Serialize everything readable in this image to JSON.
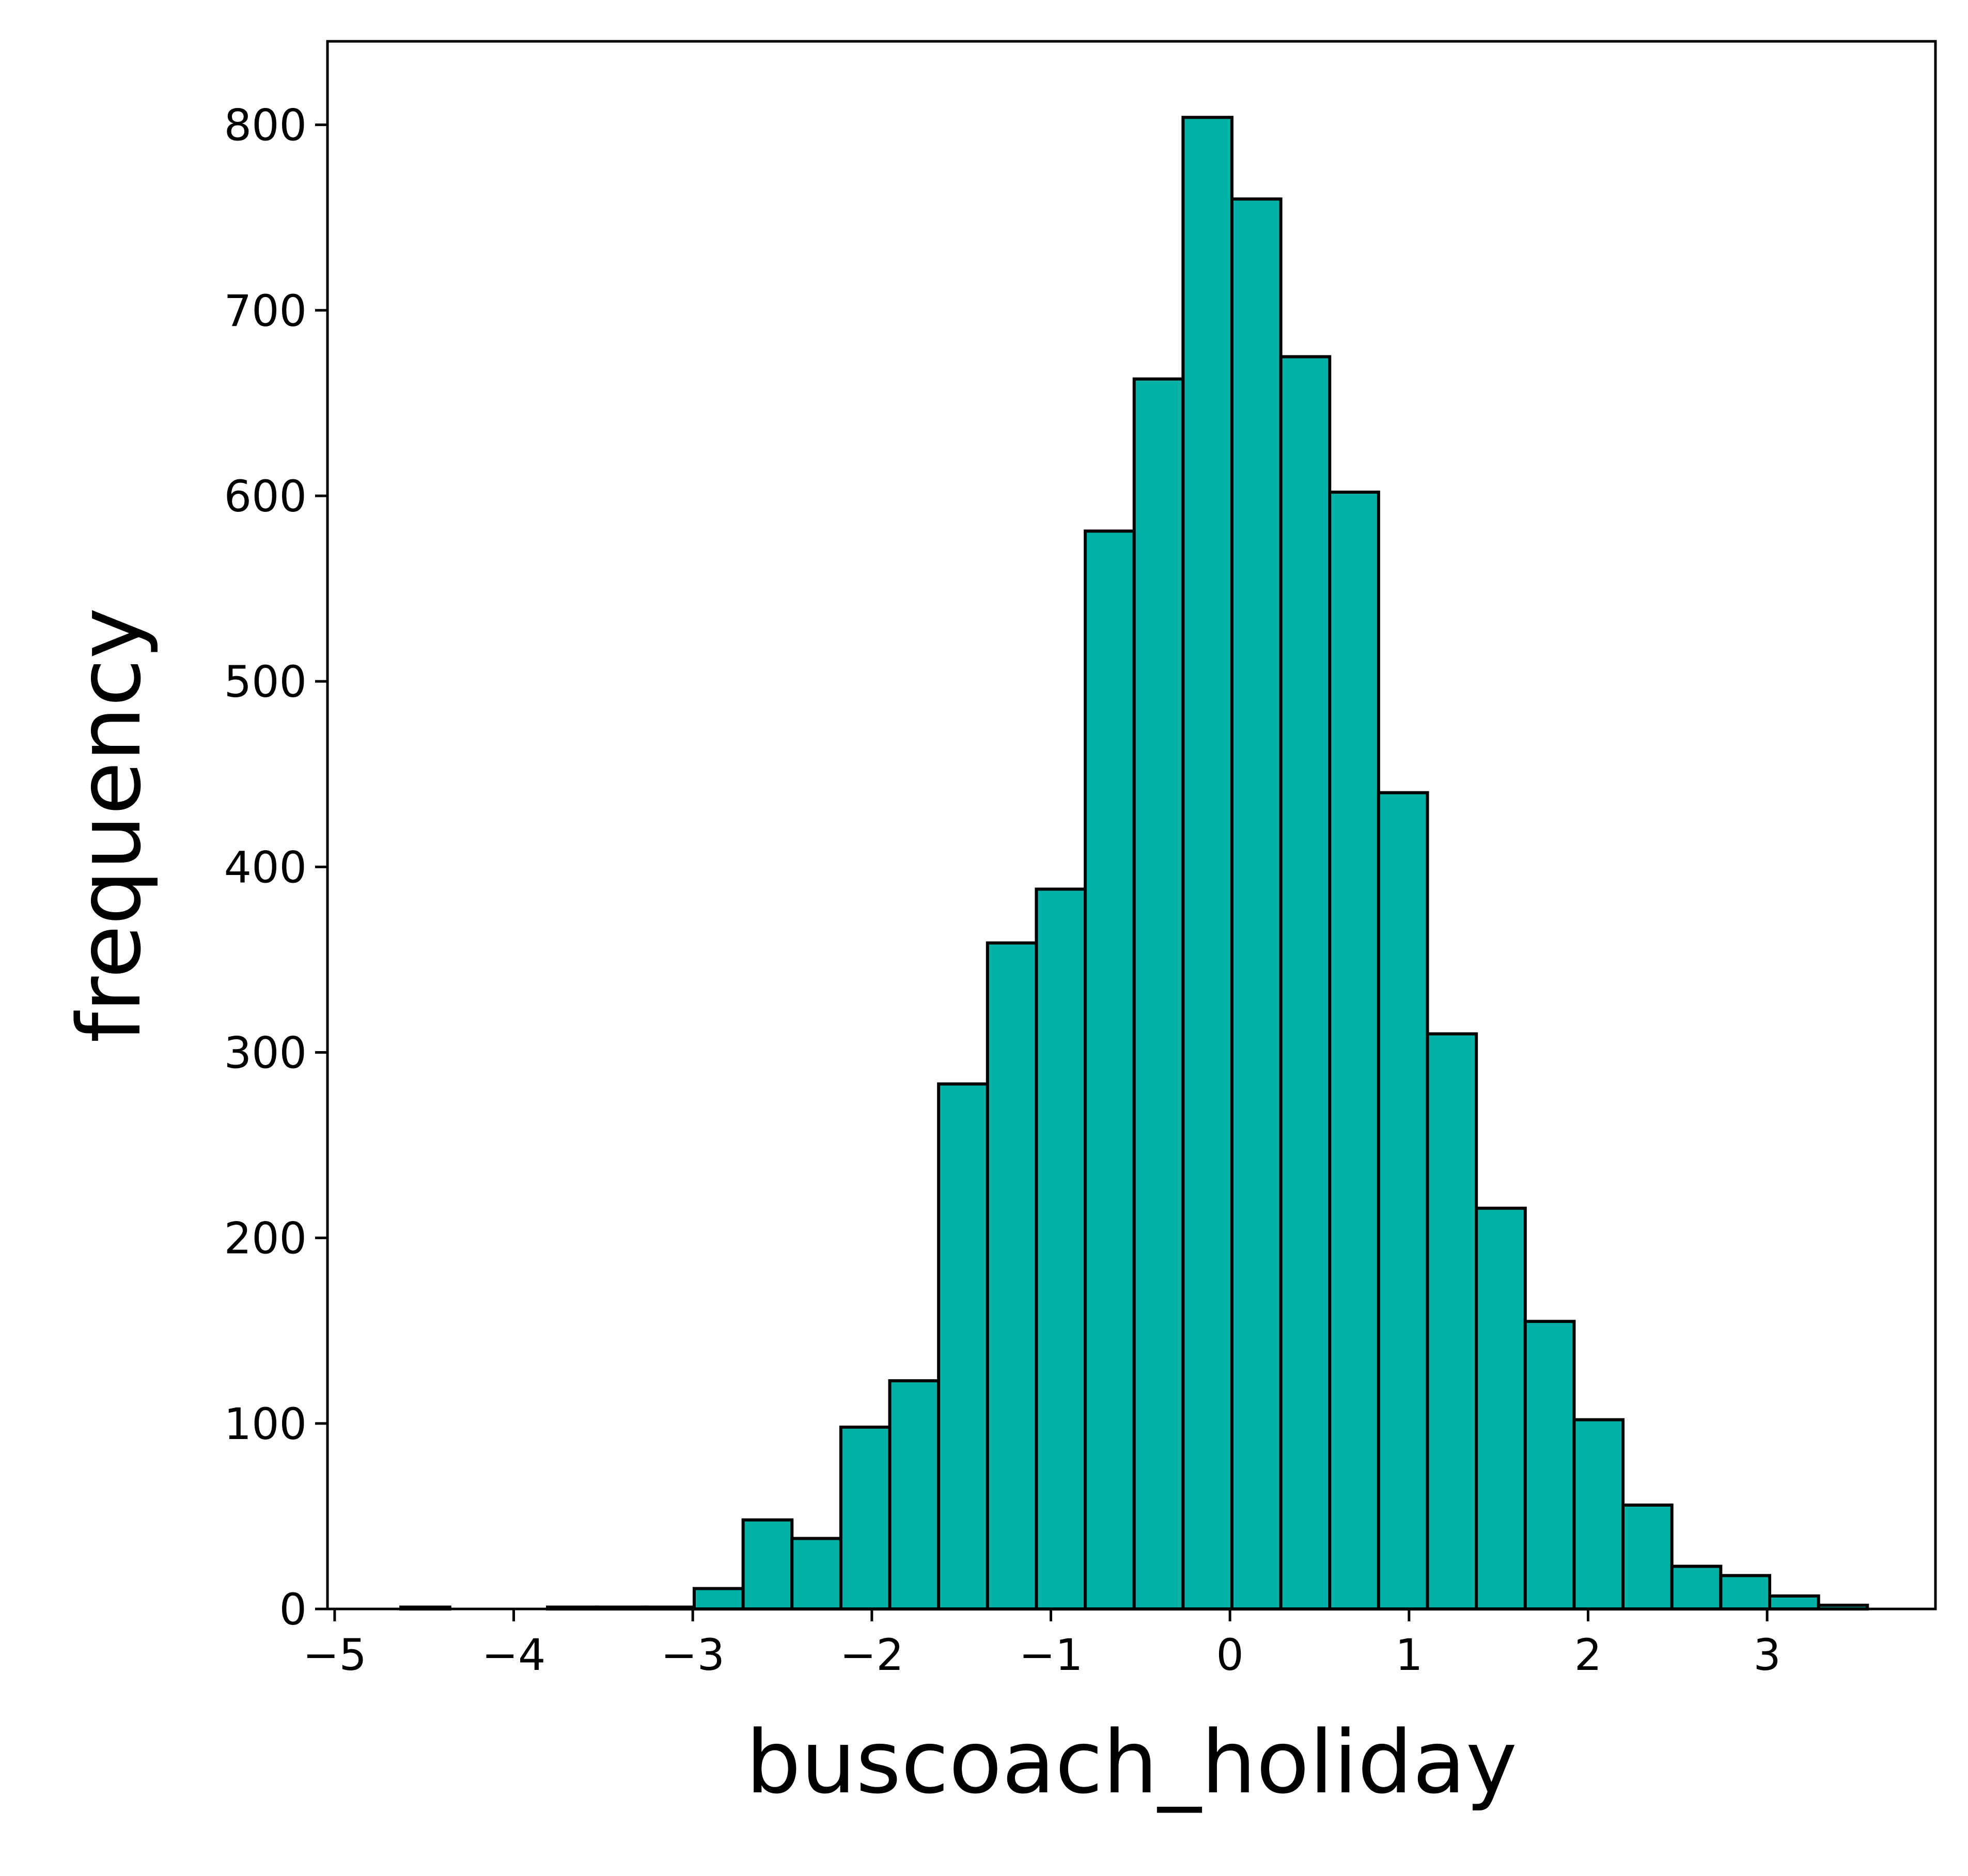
{
  "chart_data": {
    "type": "bar",
    "title": "",
    "xlabel": "buscoach_holiday",
    "ylabel": "frequency",
    "xlim": [
      -5.04,
      3.94
    ],
    "ylim": [
      0,
      845
    ],
    "x_ticks": [
      -5,
      -4,
      -3,
      -2,
      -1,
      0,
      1,
      2,
      3
    ],
    "x_tick_labels": [
      "−5",
      "−4",
      "−3",
      "−2",
      "−1",
      "0",
      "1",
      "2",
      "3"
    ],
    "y_ticks": [
      0,
      100,
      200,
      300,
      400,
      500,
      600,
      700,
      800
    ],
    "y_tick_labels": [
      "0",
      "100",
      "200",
      "300",
      "400",
      "500",
      "600",
      "700",
      "800"
    ],
    "bin_width": 0.273,
    "bins": [
      {
        "left": -4.63,
        "value": 1
      },
      {
        "left": -4.357,
        "value": 0
      },
      {
        "left": -4.084,
        "value": 0
      },
      {
        "left": -3.811,
        "value": 1
      },
      {
        "left": -3.538,
        "value": 1
      },
      {
        "left": -3.265,
        "value": 1
      },
      {
        "left": -2.992,
        "value": 11
      },
      {
        "left": -2.719,
        "value": 48
      },
      {
        "left": -2.446,
        "value": 38
      },
      {
        "left": -2.173,
        "value": 98
      },
      {
        "left": -1.9,
        "value": 123
      },
      {
        "left": -1.627,
        "value": 283
      },
      {
        "left": -1.354,
        "value": 359
      },
      {
        "left": -1.081,
        "value": 388
      },
      {
        "left": -0.808,
        "value": 581
      },
      {
        "left": -0.535,
        "value": 663
      },
      {
        "left": -0.262,
        "value": 804
      },
      {
        "left": 0.011,
        "value": 760
      },
      {
        "left": 0.284,
        "value": 675
      },
      {
        "left": 0.557,
        "value": 602
      },
      {
        "left": 0.83,
        "value": 440
      },
      {
        "left": 1.103,
        "value": 310
      },
      {
        "left": 1.376,
        "value": 216
      },
      {
        "left": 1.649,
        "value": 155
      },
      {
        "left": 1.922,
        "value": 102
      },
      {
        "left": 2.195,
        "value": 56
      },
      {
        "left": 2.468,
        "value": 23
      },
      {
        "left": 2.741,
        "value": 18
      },
      {
        "left": 3.014,
        "value": 7
      },
      {
        "left": 3.287,
        "value": 2
      }
    ],
    "bar_color": "#02b2a6",
    "edge_color": "#000000",
    "grid": false,
    "legend": "none"
  }
}
